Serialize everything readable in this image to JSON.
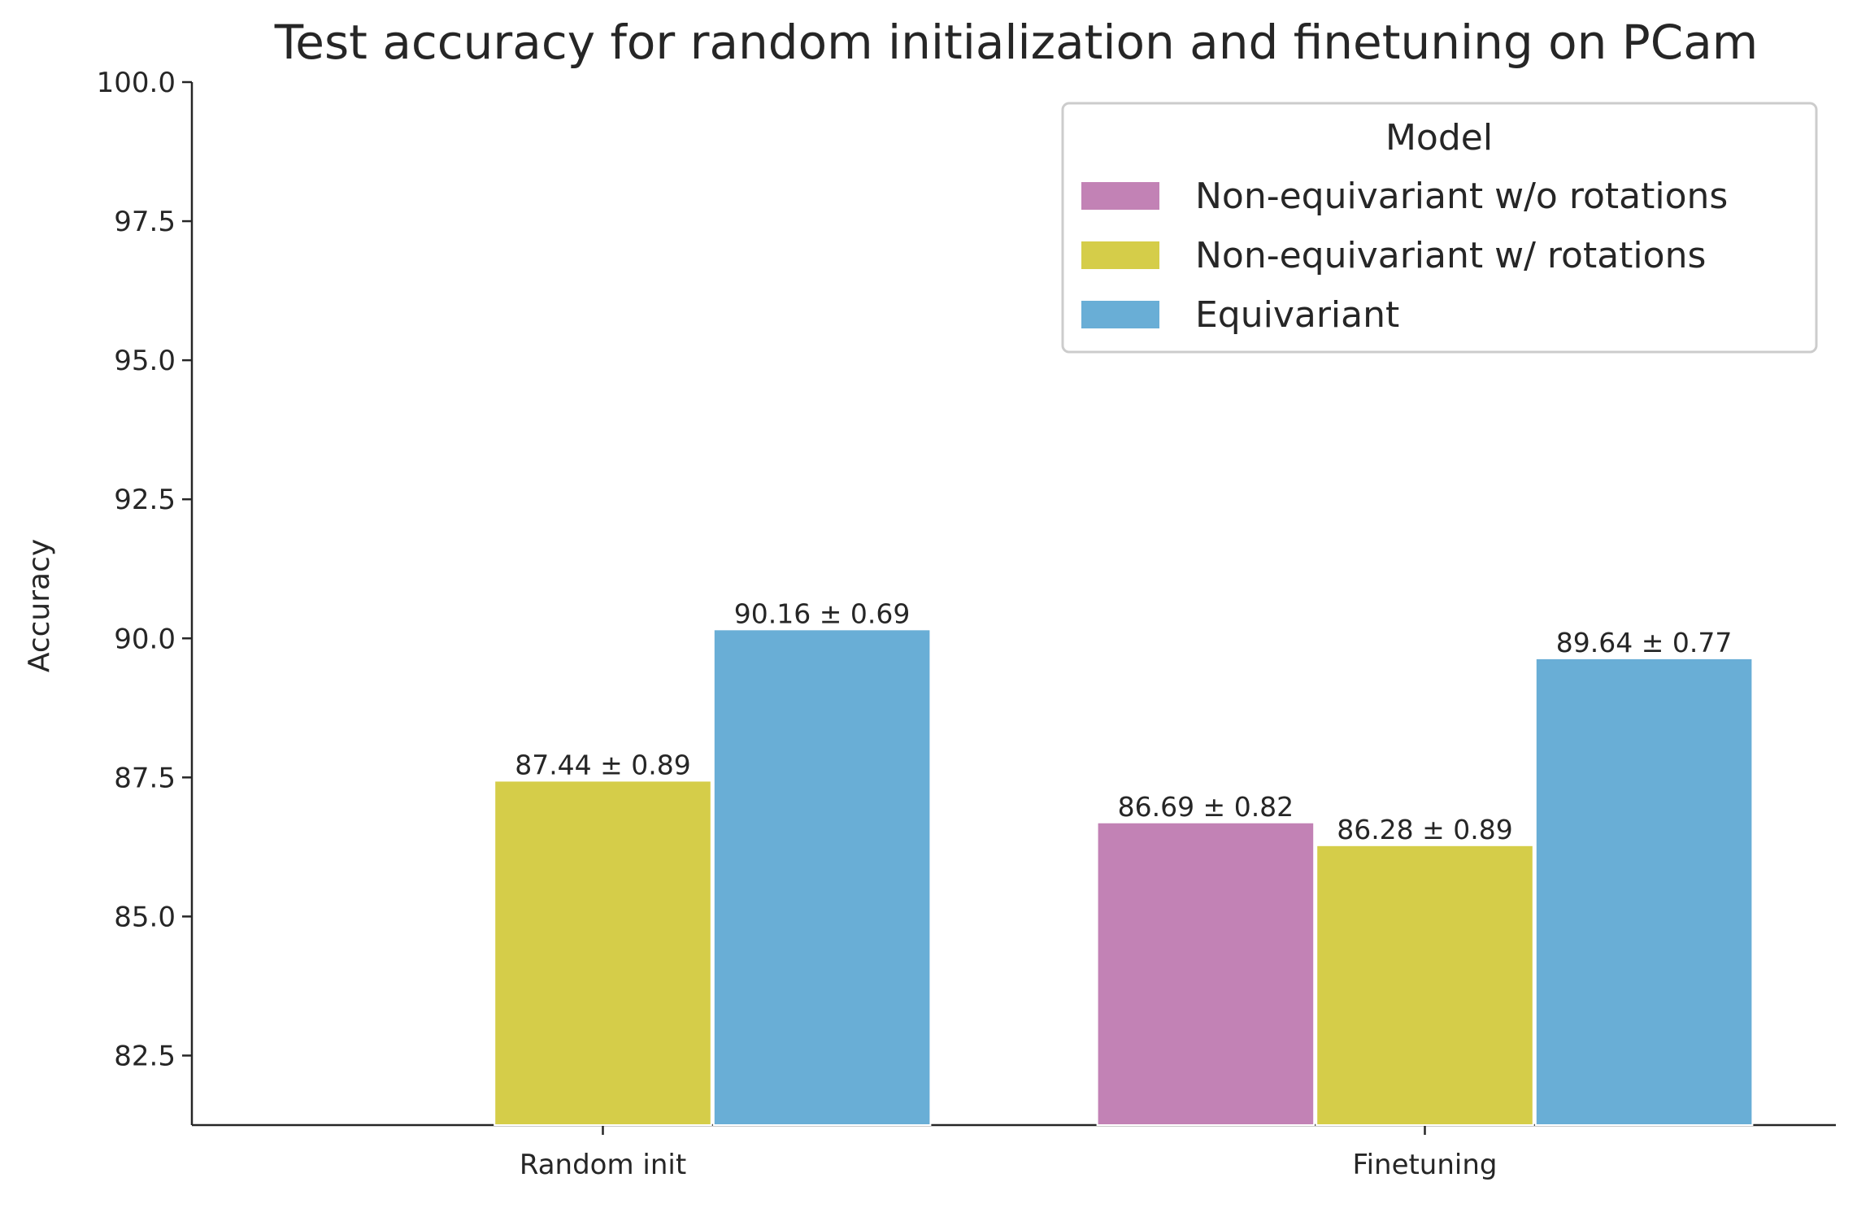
{
  "chart_data": {
    "type": "bar",
    "title": "Test accuracy for random initialization and finetuning on PCam",
    "xlabel": "",
    "ylabel": "Accuracy",
    "ylim": [
      81.25,
      100.0
    ],
    "yticks": [
      "82.5",
      "85.0",
      "87.5",
      "90.0",
      "92.5",
      "95.0",
      "97.5",
      "100.0"
    ],
    "categories": [
      "Random init",
      "Finetuning"
    ],
    "legend_title": "Model",
    "legend_position": "top-right",
    "grid": false,
    "series": [
      {
        "name": "Non-equivariant w/o rotations",
        "color": "#c282b5",
        "values": [
          null,
          86.69
        ],
        "labels": [
          "",
          "86.69 ± 0.82"
        ]
      },
      {
        "name": "Non-equivariant w/ rotations",
        "color": "#d5cd49",
        "values": [
          87.44,
          86.28
        ],
        "labels": [
          "87.44 ± 0.89",
          "86.28 ± 0.89"
        ]
      },
      {
        "name": "Equivariant",
        "color": "#69aed6",
        "values": [
          90.16,
          89.64
        ],
        "labels": [
          "90.16 ± 0.69",
          "89.64 ± 0.77"
        ]
      }
    ]
  }
}
